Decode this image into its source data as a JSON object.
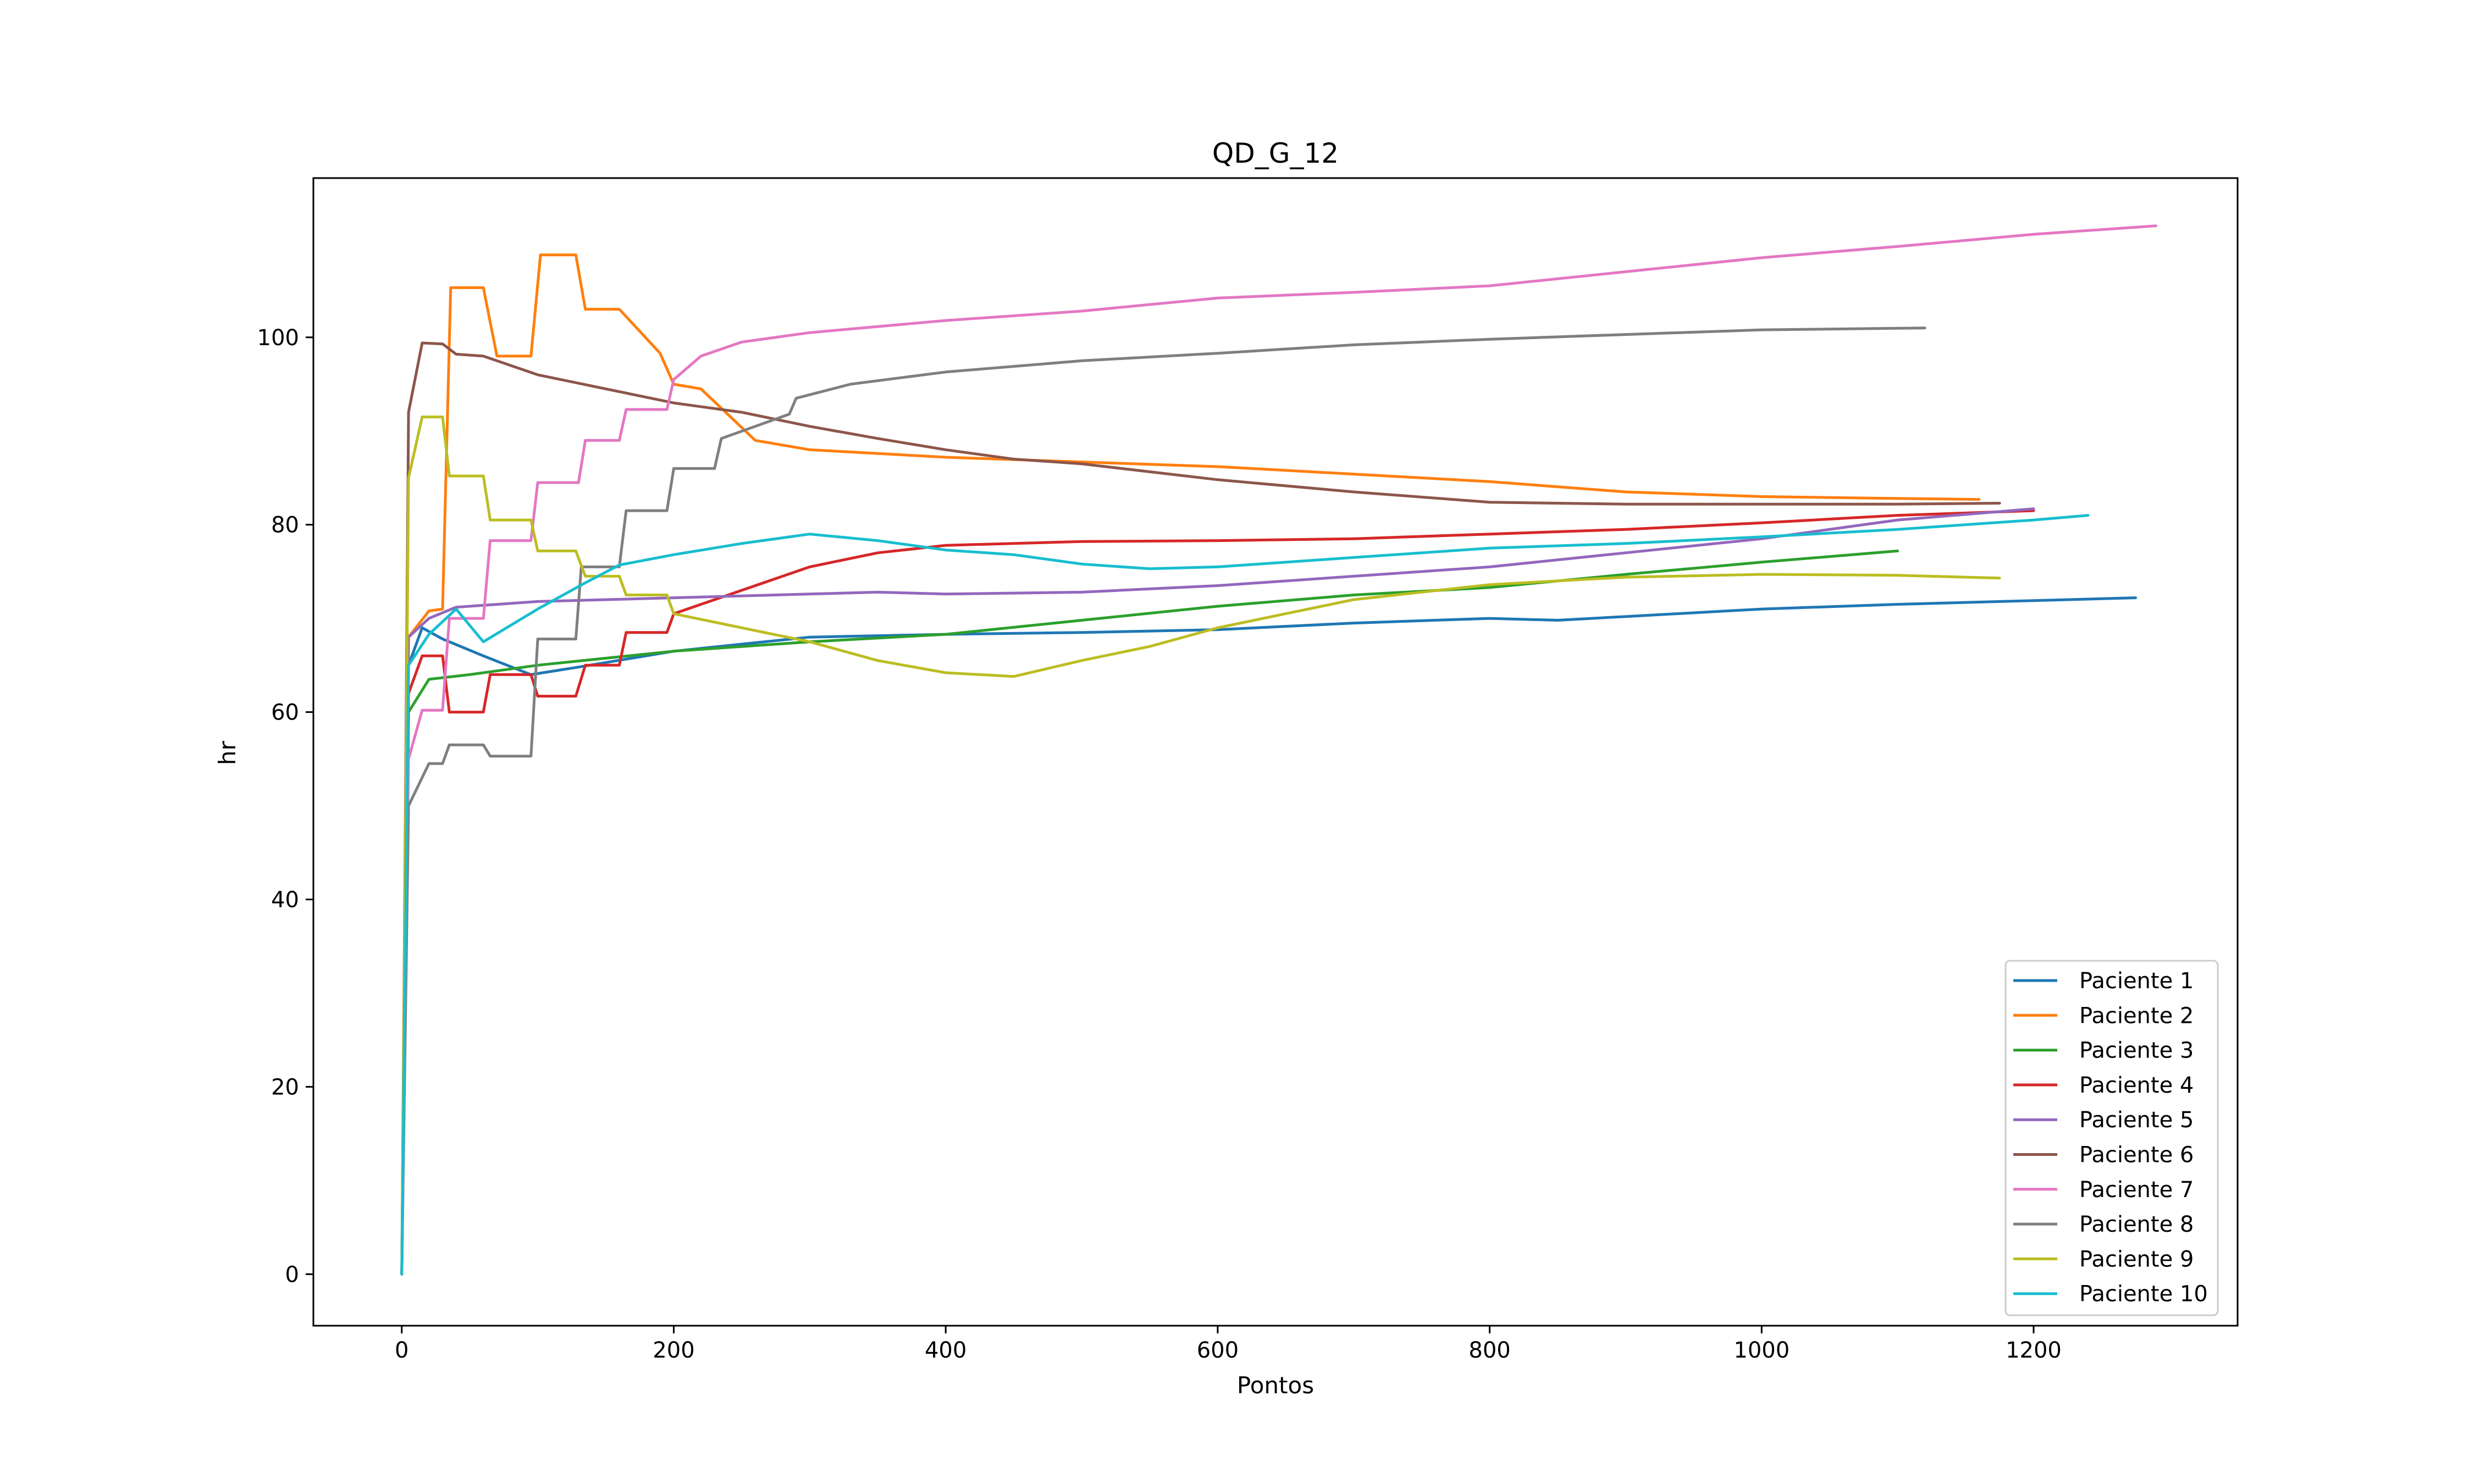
{
  "chart_data": {
    "type": "line",
    "title": "QD_G_12",
    "xlabel": "Pontos",
    "ylabel": "hr",
    "xlim": [
      -65,
      1350
    ],
    "ylim": [
      -5.5,
      117
    ],
    "xticks": [
      0,
      200,
      400,
      600,
      800,
      1000,
      1200
    ],
    "yticks": [
      0,
      20,
      40,
      60,
      80,
      100
    ],
    "grid": false,
    "legend_position": "lower right",
    "series": [
      {
        "name": "Paciente 1",
        "color": "#1f77b4",
        "x": [
          0,
          5,
          15,
          30,
          60,
          95,
          130,
          200,
          300,
          400,
          500,
          600,
          700,
          800,
          850,
          900,
          1000,
          1100,
          1200,
          1275
        ],
        "y": [
          0,
          65,
          69,
          67.8,
          66,
          64,
          64.8,
          66.5,
          68,
          68.3,
          68.5,
          68.8,
          69.5,
          70,
          69.8,
          70.2,
          71,
          71.5,
          71.9,
          72.2
        ]
      },
      {
        "name": "Paciente 2",
        "color": "#ff7f0e",
        "x": [
          0,
          5,
          20,
          30,
          36,
          60,
          70,
          95,
          102,
          128,
          135,
          160,
          190,
          200,
          220,
          260,
          300,
          400,
          500,
          600,
          700,
          800,
          900,
          1000,
          1100,
          1160
        ],
        "y": [
          0,
          68,
          70.8,
          71,
          105.3,
          105.3,
          98,
          98,
          108.8,
          108.8,
          103,
          103,
          98.3,
          95,
          94.5,
          89,
          88,
          87.2,
          86.7,
          86.2,
          85.4,
          84.6,
          83.5,
          83,
          82.8,
          82.7
        ]
      },
      {
        "name": "Paciente 3",
        "color": "#2ca02c",
        "x": [
          0,
          5,
          20,
          50,
          100,
          200,
          300,
          400,
          500,
          600,
          700,
          800,
          900,
          1000,
          1100
        ],
        "y": [
          0,
          60,
          63.5,
          64,
          65,
          66.5,
          67.5,
          68.3,
          69.8,
          71.3,
          72.5,
          73.3,
          74.7,
          76,
          77.2
        ]
      },
      {
        "name": "Paciente 4",
        "color": "#d62728",
        "x": [
          0,
          5,
          15,
          30,
          35,
          60,
          65,
          95,
          100,
          128,
          135,
          160,
          165,
          195,
          200,
          250,
          300,
          350,
          400,
          500,
          600,
          700,
          800,
          900,
          1000,
          1100,
          1200
        ],
        "y": [
          0,
          62,
          66,
          66,
          60,
          60,
          64,
          64,
          61.7,
          61.7,
          65,
          65,
          68.5,
          68.5,
          70.5,
          73,
          75.5,
          77,
          77.8,
          78.2,
          78.3,
          78.5,
          79,
          79.5,
          80.2,
          81,
          81.5
        ]
      },
      {
        "name": "Paciente 5",
        "color": "#9467bd",
        "x": [
          0,
          5,
          20,
          40,
          100,
          200,
          300,
          350,
          400,
          500,
          600,
          700,
          800,
          900,
          1000,
          1100,
          1200
        ],
        "y": [
          0,
          68,
          70,
          71.2,
          71.8,
          72.2,
          72.6,
          72.8,
          72.6,
          72.8,
          73.5,
          74.5,
          75.5,
          77,
          78.5,
          80.5,
          81.7
        ]
      },
      {
        "name": "Paciente 6",
        "color": "#8c564b",
        "x": [
          0,
          5,
          15,
          30,
          40,
          60,
          100,
          150,
          200,
          250,
          300,
          350,
          400,
          450,
          500,
          600,
          700,
          800,
          900,
          1000,
          1100,
          1175
        ],
        "y": [
          0,
          92,
          99.4,
          99.3,
          98.2,
          98,
          96,
          94.5,
          93,
          92,
          90.5,
          89.2,
          88,
          87,
          86.5,
          84.8,
          83.5,
          82.4,
          82.2,
          82.2,
          82.2,
          82.3
        ]
      },
      {
        "name": "Paciente 7",
        "color": "#e377c2",
        "x": [
          0,
          5,
          15,
          30,
          35,
          60,
          65,
          95,
          100,
          130,
          135,
          160,
          165,
          195,
          200,
          220,
          250,
          300,
          400,
          500,
          600,
          700,
          800,
          900,
          1000,
          1100,
          1200,
          1290
        ],
        "y": [
          0,
          55,
          60.2,
          60.2,
          70,
          70,
          78.3,
          78.3,
          84.5,
          84.5,
          89,
          89,
          92.3,
          92.3,
          95.5,
          98,
          99.5,
          100.5,
          101.8,
          102.8,
          104.2,
          104.8,
          105.5,
          107,
          108.5,
          109.7,
          111,
          111.9
        ]
      },
      {
        "name": "Paciente 8",
        "color": "#7f7f7f",
        "x": [
          0,
          5,
          20,
          30,
          35,
          60,
          65,
          95,
          100,
          128,
          132,
          160,
          165,
          195,
          200,
          230,
          235,
          285,
          290,
          330,
          400,
          500,
          600,
          700,
          800,
          900,
          1000,
          1120
        ],
        "y": [
          0,
          50,
          54.5,
          54.5,
          56.5,
          56.5,
          55.3,
          55.3,
          67.8,
          67.8,
          75.5,
          75.5,
          81.5,
          81.5,
          86,
          86,
          89.2,
          91.8,
          93.5,
          95,
          96.3,
          97.5,
          98.3,
          99.2,
          99.8,
          100.3,
          100.8,
          101
        ]
      },
      {
        "name": "Paciente 9",
        "color": "#bcbd22",
        "x": [
          0,
          5,
          15,
          30,
          35,
          60,
          65,
          95,
          100,
          128,
          135,
          160,
          165,
          195,
          200,
          250,
          300,
          350,
          400,
          450,
          500,
          550,
          600,
          650,
          700,
          800,
          900,
          1000,
          1100,
          1175
        ],
        "y": [
          0,
          85,
          91.5,
          91.5,
          85.2,
          85.2,
          80.5,
          80.5,
          77.2,
          77.2,
          74.5,
          74.5,
          72.5,
          72.5,
          70.5,
          69,
          67.5,
          65.5,
          64.2,
          63.8,
          65.5,
          67,
          69,
          70.5,
          72,
          73.6,
          74.4,
          74.7,
          74.6,
          74.3
        ]
      },
      {
        "name": "Paciente 10",
        "color": "#17becf",
        "x": [
          0,
          5,
          20,
          40,
          60,
          100,
          135,
          160,
          200,
          250,
          300,
          350,
          400,
          450,
          500,
          550,
          600,
          700,
          800,
          900,
          1000,
          1100,
          1200,
          1240
        ],
        "y": [
          0,
          65,
          68.3,
          71,
          67.5,
          71,
          73.8,
          75.7,
          76.8,
          78,
          79,
          78.3,
          77.3,
          76.8,
          75.8,
          75.3,
          75.5,
          76.5,
          77.5,
          78,
          78.7,
          79.5,
          80.5,
          81
        ]
      }
    ]
  }
}
